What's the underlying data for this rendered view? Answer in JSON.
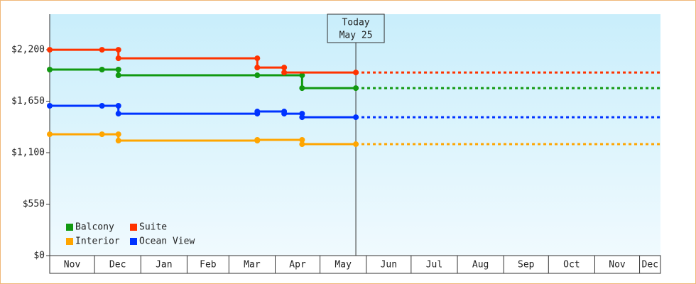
{
  "chart_data": {
    "type": "step",
    "x_unit_note_free": null,
    "annotation": {
      "x": 205,
      "lines": [
        "Today",
        "May 25"
      ]
    },
    "xlim": [
      0,
      409
    ],
    "xticks": [
      {
        "value": 0,
        "label": "Nov"
      },
      {
        "value": 30,
        "label": "Dec"
      },
      {
        "value": 61,
        "label": "Jan"
      },
      {
        "value": 92,
        "label": "Feb"
      },
      {
        "value": 120,
        "label": "Mar"
      },
      {
        "value": 151,
        "label": "Apr"
      },
      {
        "value": 181,
        "label": "May"
      },
      {
        "value": 212,
        "label": "Jun"
      },
      {
        "value": 242,
        "label": "Jul"
      },
      {
        "value": 273,
        "label": "Aug"
      },
      {
        "value": 304,
        "label": "Sep"
      },
      {
        "value": 334,
        "label": "Oct"
      },
      {
        "value": 365,
        "label": "Nov"
      },
      {
        "value": 395,
        "label": "Dec"
      }
    ],
    "ylim": [
      0,
      2580
    ],
    "yticks": [
      {
        "value": 0,
        "label": "$0"
      },
      {
        "value": 550,
        "label": "$550"
      },
      {
        "value": 1100,
        "label": "$1,100"
      },
      {
        "value": 1650,
        "label": "$1,650"
      },
      {
        "value": 2200,
        "label": "$2,200"
      }
    ],
    "legend": "bottom-left",
    "series": [
      {
        "name": "Balcony",
        "color": "#119911",
        "x": [
          0,
          35,
          46,
          46,
          139,
          169,
          169,
          205
        ],
        "values": [
          1988,
          1988,
          1988,
          1927,
          1927,
          1927,
          1790,
          1790
        ]
      },
      {
        "name": "Suite",
        "color": "#ff3300",
        "x": [
          0,
          35,
          46,
          46,
          139,
          139,
          157,
          157,
          205
        ],
        "values": [
          2200,
          2200,
          2200,
          2109,
          2109,
          2010,
          2010,
          1957,
          1957
        ]
      },
      {
        "name": "Interior",
        "color": "#ffa500",
        "x": [
          0,
          35,
          46,
          46,
          139,
          139,
          169,
          169,
          205
        ],
        "values": [
          1297,
          1297,
          1297,
          1229,
          1229,
          1237,
          1237,
          1191,
          1191
        ]
      },
      {
        "name": "Ocean View",
        "color": "#0033ff",
        "x": [
          0,
          35,
          46,
          46,
          139,
          139,
          157,
          157,
          169,
          169,
          205
        ],
        "values": [
          1601,
          1601,
          1601,
          1517,
          1517,
          1540,
          1540,
          1517,
          1517,
          1479,
          1479
        ]
      }
    ]
  }
}
